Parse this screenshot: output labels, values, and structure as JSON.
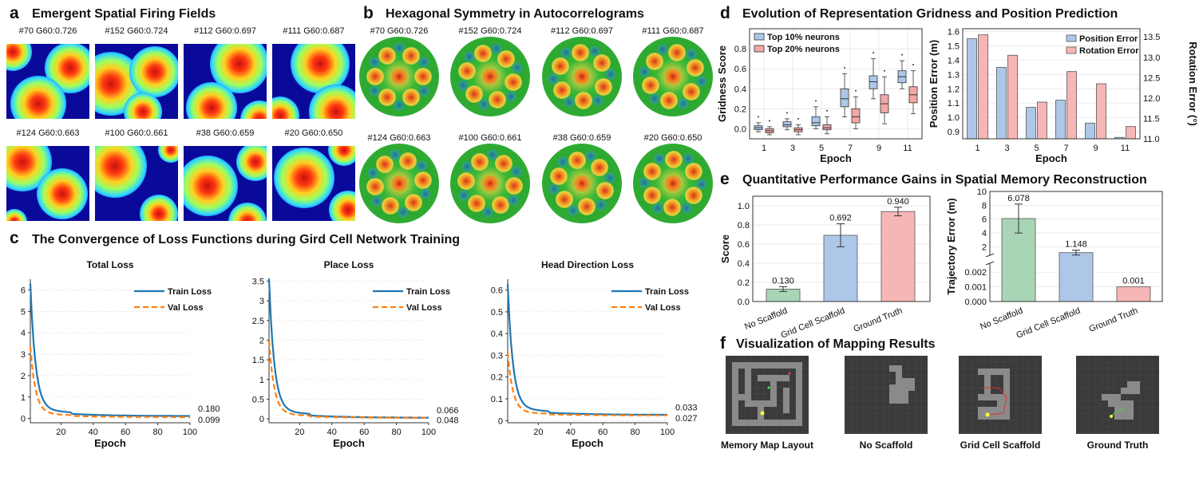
{
  "panels": {
    "a": {
      "letter": "a",
      "title": "Emergent Spatial Firing Fields",
      "captions": [
        "#70 G60:0.726",
        "#152 G60:0.724",
        "#112 G60:0.697",
        "#111 G60:0.687",
        "#124 G60:0.663",
        "#100 G60:0.661",
        "#38 G60:0.659",
        "#20 G60:0.650"
      ]
    },
    "b": {
      "letter": "b",
      "title": "Hexagonal Symmetry in Autocorrelograms",
      "captions": [
        "#70 G60:0.726",
        "#152 G60:0.724",
        "#112 G60:0.697",
        "#111 G60:0.687",
        "#124 G60:0.663",
        "#100 G60:0.661",
        "#38 G60:0.659",
        "#20 G60:0.650"
      ]
    },
    "c": {
      "letter": "c",
      "title": "The Convergence of Loss Functions during Gird Cell Network Training"
    },
    "d": {
      "letter": "d",
      "title": "Evolution of Representation Gridness and Position Prediction"
    },
    "e": {
      "letter": "e",
      "title": "Quantitative Performance Gains in Spatial Memory Reconstruction"
    },
    "f": {
      "letter": "f",
      "title": "Visualization of Mapping Results",
      "captions": [
        "Memory Map Layout",
        "No Scaffold",
        "Grid Cell Scaffold",
        "Ground Truth"
      ]
    }
  },
  "colors": {
    "train": "#1f77b4",
    "val": "#ff7f0e",
    "blue_box": "#aec7e8",
    "red_box": "#f4a6a6",
    "green_bar": "#a8d5b5",
    "blue_bar": "#aec7e8",
    "red_bar": "#f7b6b6"
  },
  "chart_data": [
    {
      "type": "line",
      "title": "Total Loss",
      "xlabel": "Epoch",
      "ylabel": "",
      "xlim": [
        1,
        100
      ],
      "ylim": [
        -0.2,
        6.5
      ],
      "xticks": [
        20,
        40,
        60,
        80,
        100
      ],
      "yticks": [
        0,
        1,
        2,
        3,
        4,
        5,
        6
      ],
      "series": [
        {
          "name": "Train Loss",
          "start": 6.0,
          "end": 0.18,
          "end_label": "0.180"
        },
        {
          "name": "Val Loss",
          "start": 3.2,
          "end": 0.099,
          "end_label": "0.099"
        }
      ]
    },
    {
      "type": "line",
      "title": "Place Loss",
      "xlabel": "Epoch",
      "ylabel": "",
      "xlim": [
        1,
        100
      ],
      "ylim": [
        -0.1,
        3.55
      ],
      "xticks": [
        20,
        40,
        60,
        80,
        100
      ],
      "yticks": [
        0.0,
        0.5,
        1.0,
        1.5,
        2.0,
        2.5,
        3.0,
        3.5
      ],
      "series": [
        {
          "name": "Train Loss",
          "start": 3.4,
          "end": 0.066,
          "end_label": "0.066"
        },
        {
          "name": "Val Loss",
          "start": 1.9,
          "end": 0.048,
          "end_label": "0.048"
        }
      ]
    },
    {
      "type": "line",
      "title": "Head Direction Loss",
      "xlabel": "Epoch",
      "ylabel": "",
      "xlim": [
        1,
        100
      ],
      "ylim": [
        -0.01,
        0.65
      ],
      "xticks": [
        20,
        40,
        60,
        80,
        100
      ],
      "yticks": [
        0.0,
        0.1,
        0.2,
        0.3,
        0.4,
        0.5,
        0.6
      ],
      "series": [
        {
          "name": "Train Loss",
          "start": 0.6,
          "end": 0.033,
          "end_label": "0.033"
        },
        {
          "name": "Val Loss",
          "start": 0.3,
          "end": 0.027,
          "end_label": "0.027"
        }
      ]
    },
    {
      "type": "box",
      "xlabel": "Epoch",
      "ylabel": "Gridness Score",
      "ylim": [
        -0.1,
        1.0
      ],
      "categories": [
        "1",
        "3",
        "5",
        "7",
        "9",
        "11"
      ],
      "yticks": [
        0.0,
        0.2,
        0.4,
        0.6,
        0.8
      ],
      "series": [
        {
          "name": "Top 10% neurons",
          "boxes": [
            [
              -0.03,
              -0.01,
              0.01,
              0.03,
              0.06
            ],
            [
              -0.01,
              0.02,
              0.04,
              0.07,
              0.1
            ],
            [
              0.0,
              0.03,
              0.06,
              0.12,
              0.22
            ],
            [
              0.12,
              0.22,
              0.3,
              0.4,
              0.55
            ],
            [
              0.3,
              0.4,
              0.47,
              0.53,
              0.7
            ],
            [
              0.4,
              0.46,
              0.52,
              0.58,
              0.68
            ]
          ]
        },
        {
          "name": "Top 20% neurons",
          "boxes": [
            [
              -0.06,
              -0.04,
              -0.02,
              0.0,
              0.02
            ],
            [
              -0.06,
              -0.03,
              -0.01,
              0.01,
              0.04
            ],
            [
              -0.05,
              -0.01,
              0.01,
              0.04,
              0.12
            ],
            [
              0.0,
              0.06,
              0.12,
              0.2,
              0.32
            ],
            [
              0.05,
              0.16,
              0.25,
              0.34,
              0.52
            ],
            [
              0.15,
              0.26,
              0.34,
              0.42,
              0.58
            ]
          ]
        }
      ]
    },
    {
      "type": "bar",
      "xlabel": "Epoch",
      "ylabel": "Position Error (m)",
      "y2label": "Rotation Error (°)",
      "categories": [
        "1",
        "3",
        "5",
        "7",
        "9",
        "11"
      ],
      "ylim": [
        0.85,
        1.62
      ],
      "y2lim": [
        11.0,
        13.7
      ],
      "yticks": [
        0.9,
        1.0,
        1.1,
        1.2,
        1.3,
        1.4,
        1.5,
        1.6
      ],
      "y2ticks": [
        11.0,
        11.5,
        12.0,
        12.5,
        13.0,
        13.5
      ],
      "series": [
        {
          "name": "Position Error",
          "axis": "left",
          "values": [
            1.55,
            1.35,
            1.07,
            1.12,
            0.96,
            0.86
          ]
        },
        {
          "name": "Rotation Error",
          "axis": "right",
          "values": [
            13.55,
            13.05,
            11.9,
            12.65,
            12.35,
            11.3
          ]
        }
      ]
    },
    {
      "type": "bar",
      "xlabel": "",
      "ylabel": "Score",
      "ylim": [
        0,
        1.1
      ],
      "categories": [
        "No Scaffold",
        "Grid Cell Scaffold",
        "Ground Truth"
      ],
      "yticks": [
        0.0,
        0.2,
        0.4,
        0.6,
        0.8,
        1.0
      ],
      "values": [
        0.13,
        0.692,
        0.94
      ],
      "labels": [
        "0.130",
        "0.692",
        "0.940"
      ],
      "errors": [
        0.025,
        0.12,
        0.045
      ]
    },
    {
      "type": "bar",
      "xlabel": "",
      "ylabel": "Trajectory Error (m)",
      "broken_axis": true,
      "categories": [
        "No Scaffold",
        "Grid Cell Scaffold",
        "Ground Truth"
      ],
      "upper_yticks": [
        2,
        4,
        6,
        8,
        10
      ],
      "lower_yticks": [
        0.0,
        0.001,
        0.002
      ],
      "values": [
        6.078,
        1.148,
        0.001
      ],
      "labels": [
        "6.078",
        "1.148",
        "0.001"
      ],
      "errors": [
        2.1,
        0.35,
        0.0
      ]
    }
  ]
}
